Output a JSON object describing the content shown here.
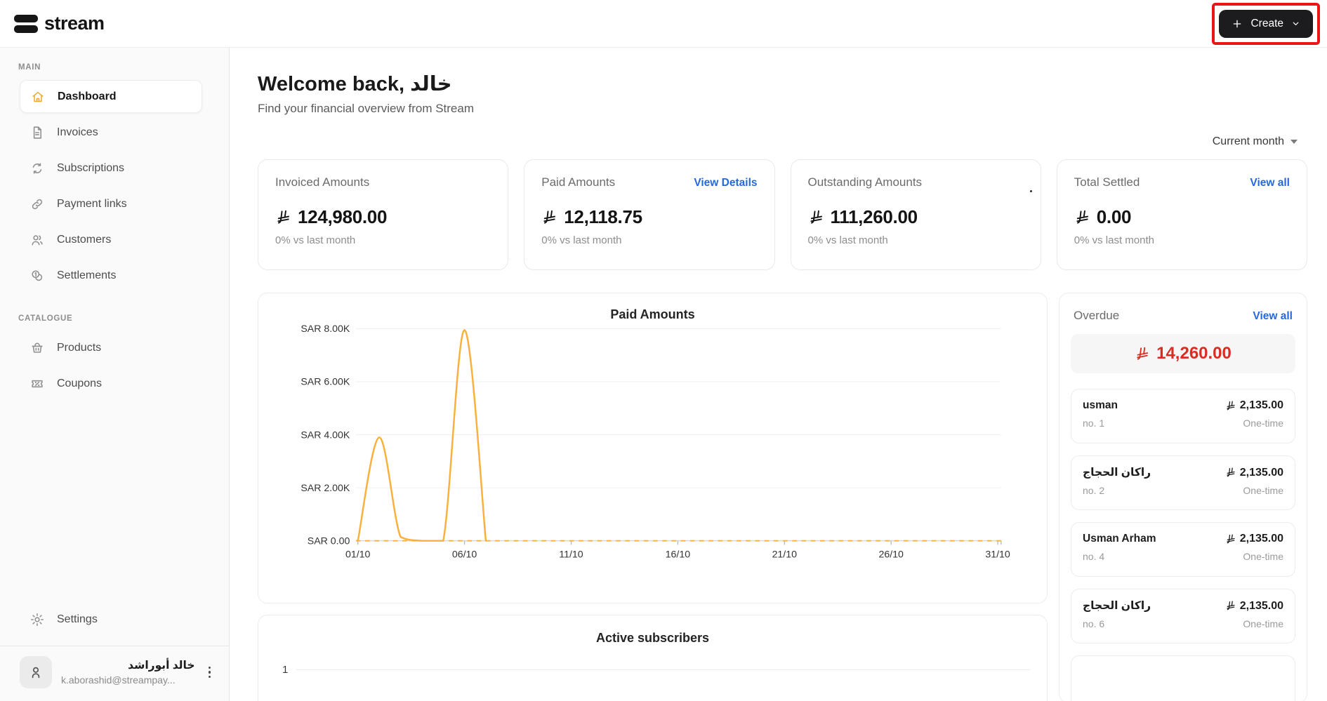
{
  "brand": {
    "name": "stream"
  },
  "header": {
    "create_button_label": "Create"
  },
  "sidebar": {
    "sections": [
      {
        "label": "MAIN",
        "items": [
          {
            "label": "Dashboard",
            "icon": "home-icon",
            "active": true
          },
          {
            "label": "Invoices",
            "icon": "invoice-icon",
            "active": false
          },
          {
            "label": "Subscriptions",
            "icon": "subscriptions-sync-icon",
            "active": false
          },
          {
            "label": "Payment links",
            "icon": "payment-link-icon",
            "active": false
          },
          {
            "label": "Customers",
            "icon": "customers-icon",
            "active": false
          },
          {
            "label": "Settlements",
            "icon": "settlements-coins-icon",
            "active": false
          }
        ]
      },
      {
        "label": "CATALOGUE",
        "items": [
          {
            "label": "Products",
            "icon": "products-basket-icon",
            "active": false
          },
          {
            "label": "Coupons",
            "icon": "coupons-ticket-icon",
            "active": false
          }
        ]
      }
    ],
    "settings_label": "Settings",
    "user": {
      "name": "خالد أبوراشد",
      "email": "k.aborashid@streampay..."
    }
  },
  "main": {
    "welcome_title": "Welcome back, خالد",
    "welcome_subtitle": "Find your financial overview from Stream",
    "period_selector": "Current month",
    "stat_cards": [
      {
        "label": "Invoiced Amounts",
        "currency": "SAR",
        "value": "124,980.00",
        "delta": "0% vs last month"
      },
      {
        "label": "Paid Amounts",
        "currency": "SAR",
        "value": "12,118.75",
        "delta": "0% vs last month",
        "link": "View Details"
      },
      {
        "label": "Outstanding Amounts",
        "currency": "SAR",
        "value": "111,260.00",
        "delta": "0% vs last month"
      },
      {
        "label": "Total Settled",
        "currency": "SAR",
        "value": "0.00",
        "delta": "0% vs last month",
        "link": "View all"
      }
    ],
    "overdue": {
      "title": "Overdue",
      "link": "View all",
      "currency": "SAR",
      "total": "14,260.00",
      "items": [
        {
          "name": "usman",
          "ref": "no. 1",
          "amount": "2,135.00",
          "type": "One-time"
        },
        {
          "name": "راكان الحجاج",
          "ref": "no. 2",
          "amount": "2,135.00",
          "type": "One-time"
        },
        {
          "name": "Usman Arham",
          "ref": "no. 4",
          "amount": "2,135.00",
          "type": "One-time"
        },
        {
          "name": "راكان الحجاج",
          "ref": "no. 6",
          "amount": "2,135.00",
          "type": "One-time"
        }
      ]
    }
  },
  "chart_data": [
    {
      "type": "line",
      "title": "Paid Amounts",
      "x_unit": "day of October (DD/10)",
      "x_tick_labels": [
        "01/10",
        "06/10",
        "11/10",
        "16/10",
        "21/10",
        "26/10",
        "31/10"
      ],
      "x_tick_days": [
        1,
        6,
        11,
        16,
        21,
        26,
        31
      ],
      "y_tick_labels": [
        "SAR 0.00",
        "SAR 2.00K",
        "SAR 4.00K",
        "SAR 6.00K",
        "SAR 8.00K"
      ],
      "ylim": [
        0,
        8000
      ],
      "grid": "horizontal",
      "line_color": "#FBB03B",
      "baseline_style": "dashed-orange-over-gray",
      "series": [
        {
          "name": "Paid Amounts",
          "values": [
            0,
            3900,
            150,
            0,
            0,
            7950,
            0,
            0,
            0,
            0,
            0,
            0,
            0,
            0,
            0,
            0,
            0,
            0,
            0,
            0,
            0,
            0,
            0,
            0,
            0,
            0,
            0,
            0,
            0,
            0,
            0
          ]
        }
      ]
    },
    {
      "type": "line",
      "title": "Active subscribers",
      "y_tick_labels": [
        "1"
      ],
      "partially_visible": true
    }
  ],
  "colors": {
    "accent_line": "#FBB03B",
    "active_icon_yellow": "#eead35",
    "link_blue": "#2569d8",
    "overdue_red": "#dc2b21",
    "annotation_red": "#ea1515",
    "button_black": "#1c1c1e",
    "sidebar_bg": "#fafafa"
  }
}
